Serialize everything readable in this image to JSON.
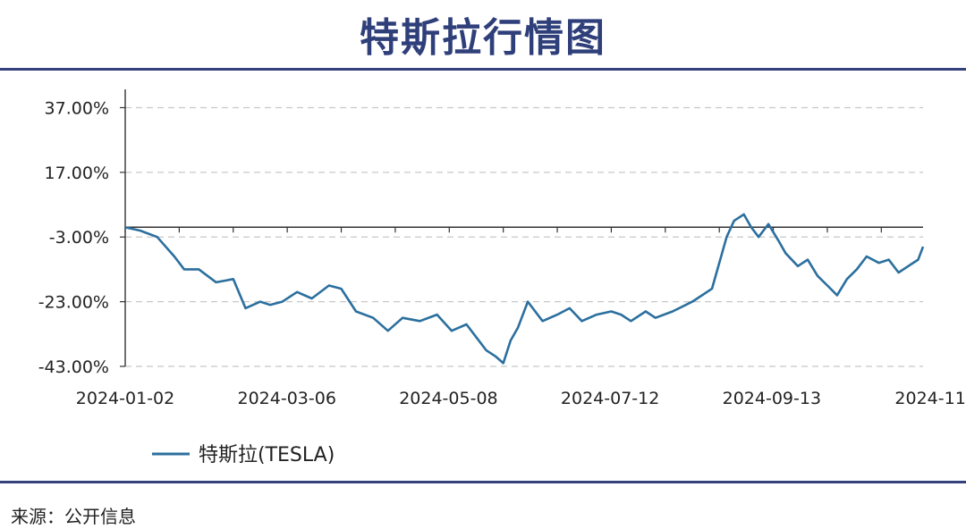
{
  "title": "特斯拉行情图",
  "source": "来源：公开信息",
  "chart_data": {
    "type": "line",
    "x_labels": [
      "2024-01-02",
      "2024-03-06",
      "2024-05-08",
      "2024-07-12",
      "2024-09-13",
      "2024-11-"
    ],
    "y_ticks": [
      "37.00%",
      "17.00%",
      "-3.00%",
      "-23.00%",
      "-43.00%"
    ],
    "y_tick_values": [
      37,
      17,
      -3,
      -23,
      -43
    ],
    "ylim": [
      -43,
      41
    ],
    "grid": "horizontal dashed",
    "legend_position": "bottom",
    "x_start": "2024-01-02",
    "x_end": "2024-11-22",
    "series": [
      {
        "name": "特斯拉(TESLA)",
        "color": "#2b6f9e",
        "points": [
          [
            "2024-01-02",
            0
          ],
          [
            "2024-01-08",
            -1
          ],
          [
            "2024-01-15",
            -3
          ],
          [
            "2024-01-22",
            -9
          ],
          [
            "2024-01-26",
            -13
          ],
          [
            "2024-02-01",
            -13
          ],
          [
            "2024-02-08",
            -17
          ],
          [
            "2024-02-15",
            -16
          ],
          [
            "2024-02-20",
            -25
          ],
          [
            "2024-02-26",
            -23
          ],
          [
            "2024-03-01",
            -24
          ],
          [
            "2024-03-06",
            -23
          ],
          [
            "2024-03-12",
            -20
          ],
          [
            "2024-03-18",
            -22
          ],
          [
            "2024-03-25",
            -18
          ],
          [
            "2024-03-30",
            -19
          ],
          [
            "2024-04-05",
            -26
          ],
          [
            "2024-04-12",
            -28
          ],
          [
            "2024-04-18",
            -32
          ],
          [
            "2024-04-24",
            -28
          ],
          [
            "2024-05-01",
            -29
          ],
          [
            "2024-05-08",
            -27
          ],
          [
            "2024-05-14",
            -32
          ],
          [
            "2024-05-20",
            -30
          ],
          [
            "2024-05-24",
            -34
          ],
          [
            "2024-05-28",
            -38
          ],
          [
            "2024-06-01",
            -40
          ],
          [
            "2024-06-04",
            -42
          ],
          [
            "2024-06-07",
            -35
          ],
          [
            "2024-06-10",
            -31
          ],
          [
            "2024-06-14",
            -23
          ],
          [
            "2024-06-20",
            -29
          ],
          [
            "2024-06-26",
            -27
          ],
          [
            "2024-07-01",
            -25
          ],
          [
            "2024-07-06",
            -29
          ],
          [
            "2024-07-12",
            -27
          ],
          [
            "2024-07-18",
            -26
          ],
          [
            "2024-07-22",
            -27
          ],
          [
            "2024-07-26",
            -29
          ],
          [
            "2024-08-01",
            -26
          ],
          [
            "2024-08-05",
            -28
          ],
          [
            "2024-08-12",
            -26
          ],
          [
            "2024-08-20",
            -23
          ],
          [
            "2024-08-24",
            -21
          ],
          [
            "2024-08-28",
            -19
          ],
          [
            "2024-09-03",
            -3
          ],
          [
            "2024-09-06",
            2
          ],
          [
            "2024-09-10",
            4
          ],
          [
            "2024-09-13",
            0
          ],
          [
            "2024-09-16",
            -3
          ],
          [
            "2024-09-20",
            1
          ],
          [
            "2024-09-24",
            -4
          ],
          [
            "2024-09-27",
            -8
          ],
          [
            "2024-10-02",
            -12
          ],
          [
            "2024-10-06",
            -10
          ],
          [
            "2024-10-10",
            -15
          ],
          [
            "2024-10-14",
            -18
          ],
          [
            "2024-10-18",
            -21
          ],
          [
            "2024-10-22",
            -16
          ],
          [
            "2024-10-26",
            -13
          ],
          [
            "2024-10-30",
            -9
          ],
          [
            "2024-11-04",
            -11
          ],
          [
            "2024-11-08",
            -10
          ],
          [
            "2024-11-12",
            -14
          ],
          [
            "2024-11-16",
            -12
          ],
          [
            "2024-11-20",
            -10
          ],
          [
            "2024-11-22",
            -6
          ]
        ]
      }
    ]
  }
}
